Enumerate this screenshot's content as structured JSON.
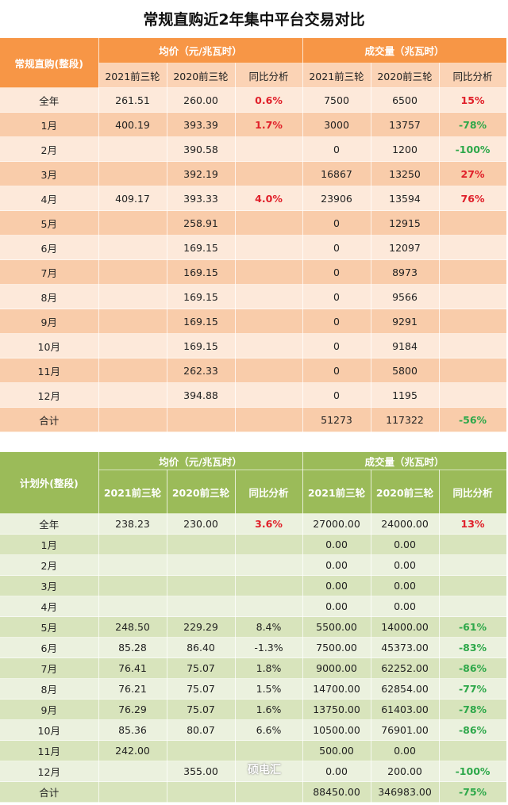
{
  "title": "常规直购近2年集中平台交易对比",
  "colors": {
    "orange_header": "#F79646",
    "green_header": "#9BBB59",
    "increase": "#E0202A",
    "decrease": "#2EA84A"
  },
  "columns_sub": [
    "2021前三轮",
    "2020前三轮",
    "同比分析",
    "2021前三轮",
    "2020前三轮",
    "同比分析"
  ],
  "group_price": "均价（元/兆瓦时）",
  "group_volume": "成交量（兆瓦时）",
  "table1": {
    "label": "常规直购(整段)",
    "rows": [
      [
        "全年",
        "261.51",
        "260.00",
        "0.6%",
        "7500",
        "6500",
        "15%"
      ],
      [
        "1月",
        "400.19",
        "393.39",
        "1.7%",
        "3000",
        "13757",
        "-78%"
      ],
      [
        "2月",
        "",
        "390.58",
        "",
        "0",
        "1200",
        "-100%"
      ],
      [
        "3月",
        "",
        "392.19",
        "",
        "16867",
        "13250",
        "27%"
      ],
      [
        "4月",
        "409.17",
        "393.33",
        "4.0%",
        "23906",
        "13594",
        "76%"
      ],
      [
        "5月",
        "",
        "258.91",
        "",
        "0",
        "12915",
        ""
      ],
      [
        "6月",
        "",
        "169.15",
        "",
        "0",
        "12097",
        ""
      ],
      [
        "7月",
        "",
        "169.15",
        "",
        "0",
        "8973",
        ""
      ],
      [
        "8月",
        "",
        "169.15",
        "",
        "0",
        "9566",
        ""
      ],
      [
        "9月",
        "",
        "169.15",
        "",
        "0",
        "9291",
        ""
      ],
      [
        "10月",
        "",
        "169.15",
        "",
        "0",
        "9184",
        ""
      ],
      [
        "11月",
        "",
        "262.33",
        "",
        "0",
        "5800",
        ""
      ],
      [
        "12月",
        "",
        "394.88",
        "",
        "0",
        "1195",
        ""
      ],
      [
        "合计",
        "",
        "",
        "",
        "51273",
        "117322",
        "-56%"
      ]
    ]
  },
  "table2": {
    "label": "计划外(整段)",
    "rows": [
      [
        "全年",
        "238.23",
        "230.00",
        "3.6%",
        "27000.00",
        "24000.00",
        "13%"
      ],
      [
        "1月",
        "",
        "",
        "",
        "0.00",
        "0.00",
        ""
      ],
      [
        "2月",
        "",
        "",
        "",
        "0.00",
        "0.00",
        ""
      ],
      [
        "3月",
        "",
        "",
        "",
        "0.00",
        "0.00",
        ""
      ],
      [
        "4月",
        "",
        "",
        "",
        "0.00",
        "0.00",
        ""
      ],
      [
        "5月",
        "248.50",
        "229.29",
        "8.4%",
        "5500.00",
        "14000.00",
        "-61%"
      ],
      [
        "6月",
        "85.28",
        "86.40",
        "-1.3%",
        "7500.00",
        "45373.00",
        "-83%"
      ],
      [
        "7月",
        "76.41",
        "75.07",
        "1.8%",
        "9000.00",
        "62252.00",
        "-86%"
      ],
      [
        "8月",
        "76.21",
        "75.07",
        "1.5%",
        "14700.00",
        "62854.00",
        "-77%"
      ],
      [
        "9月",
        "76.29",
        "75.07",
        "1.6%",
        "13750.00",
        "61403.00",
        "-78%"
      ],
      [
        "10月",
        "85.36",
        "80.07",
        "6.6%",
        "10500.00",
        "76901.00",
        "-86%"
      ],
      [
        "11月",
        "242.00",
        "",
        "",
        "500.00",
        "0.00",
        ""
      ],
      [
        "12月",
        "",
        "355.00",
        "",
        "0.00",
        "200.00",
        "-100%"
      ],
      [
        "合计",
        "",
        "",
        "",
        "88450.00",
        "346983.00",
        "-75%"
      ]
    ],
    "highlight_first_row_price_yoy": true
  },
  "watermark": "硕电汇"
}
